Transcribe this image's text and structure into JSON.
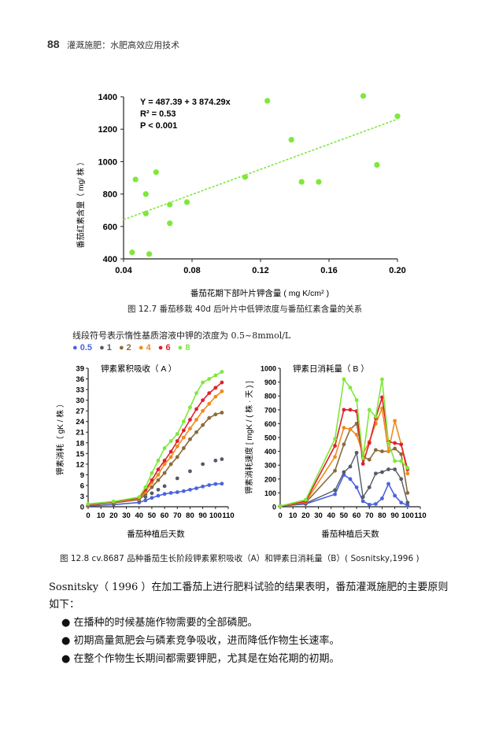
{
  "header": {
    "page_number": "88",
    "book_title": "灌溉施肥：水肥高效应用技术"
  },
  "fig127": {
    "caption": "图 12.7   番茄移栽 40d 后叶片中低钾浓度与番茄红素含量的关系",
    "equation": "Y = 487.39 + 3 874.29x",
    "r2": "R² = 0.53",
    "p": "P < 0.001",
    "xlabel": "番茄花期下部叶片钾含量 ( mg K/cm² )",
    "ylabel": "番茄红素含量（ mg/ 株 ）",
    "point_color": "#7ee83a"
  },
  "fig128_note": "线段符号表示惰性基质溶液中钾的浓度为 0.5~8mmol/L",
  "fig128_legend": [
    {
      "label": "0.5",
      "color": "#4a63e0"
    },
    {
      "label": "1",
      "color": "#555b66"
    },
    {
      "label": "2",
      "color": "#8a6a3c"
    },
    {
      "label": "4",
      "color": "#f08a1c"
    },
    {
      "label": "6",
      "color": "#e0202a"
    },
    {
      "label": "8",
      "color": "#7ee83a"
    }
  ],
  "fig128": {
    "caption": "图 12.8   cv.8687 品种番茄生长阶段钾素累积吸收（A）和钾素日消耗量（B）( Sosnitsky,1996 )",
    "A_title": "钾素累积吸收（ A ）",
    "A_ylabel": "钾素消耗（ gK / 株 ）",
    "A_xlabel": "番茄种植后天数",
    "B_title": "钾素日消耗量（ B ）",
    "B_ylabel": "钾素消耗速度 [ mgK / ( 株 · 天 ) ]",
    "B_xlabel": "番茄种植后天数"
  },
  "paragraph": "Sosnitsky（ 1996 ）在加工番茄上进行肥料试验的结果表明，番茄灌溉施肥的主要原则如下：",
  "bullets": [
    "在播种的时候基施作物需要的全部磷肥。",
    "初期高量氮肥会与磷素竞争吸收，进而降低作物生长速率。",
    "在整个作物生长期间都需要钾肥，尤其是在始花期的初期。"
  ],
  "chart_data": [
    {
      "type": "scatter",
      "title": "",
      "xlabel": "番茄花期下部叶片钾含量 ( mg K/cm² )",
      "ylabel": "番茄红素含量（ mg/ 株 ）",
      "xlim": [
        0.04,
        0.2
      ],
      "ylim": [
        400,
        1400
      ],
      "xticks": [
        "0.04",
        "0.08",
        "0.12",
        "0.16",
        "0.20"
      ],
      "yticks": [
        "400",
        "600",
        "800",
        "1000",
        "1200",
        "1400"
      ],
      "points": [
        {
          "x": 0.045,
          "y": 440
        },
        {
          "x": 0.047,
          "y": 890
        },
        {
          "x": 0.053,
          "y": 800
        },
        {
          "x": 0.053,
          "y": 680
        },
        {
          "x": 0.055,
          "y": 430
        },
        {
          "x": 0.059,
          "y": 935
        },
        {
          "x": 0.067,
          "y": 620
        },
        {
          "x": 0.067,
          "y": 735
        },
        {
          "x": 0.077,
          "y": 750
        },
        {
          "x": 0.111,
          "y": 905
        },
        {
          "x": 0.124,
          "y": 1375
        },
        {
          "x": 0.138,
          "y": 1135
        },
        {
          "x": 0.144,
          "y": 875
        },
        {
          "x": 0.154,
          "y": 875
        },
        {
          "x": 0.18,
          "y": 1405
        },
        {
          "x": 0.188,
          "y": 980
        },
        {
          "x": 0.2,
          "y": 1280
        }
      ],
      "fit": {
        "intercept": 487.39,
        "slope": 3874.29
      },
      "annotations": [
        "Y = 487.39 + 3 874.29x",
        "R² = 0.53",
        "P < 0.001"
      ]
    },
    {
      "type": "line",
      "title": "钾素累积吸收（ A ）",
      "xlabel": "番茄种植后天数",
      "ylabel": "钾素消耗（ gK / 株 ）",
      "xlim": [
        0,
        110
      ],
      "ylim": [
        0,
        39
      ],
      "xticks": [
        0,
        10,
        20,
        30,
        40,
        50,
        60,
        70,
        80,
        90,
        100,
        110
      ],
      "xtick_labels": [
        "0",
        "10",
        "20",
        "30",
        "40",
        "50",
        "60",
        "70",
        "80",
        "90",
        "100",
        "110"
      ],
      "yticks": [
        0,
        3,
        6,
        9,
        12,
        15,
        18,
        21,
        24,
        27,
        30,
        33,
        36,
        39
      ],
      "x_solid": [
        0,
        20,
        40,
        45,
        50,
        55,
        60,
        65,
        70,
        75,
        80,
        85,
        90,
        95,
        100,
        105
      ],
      "series": [
        {
          "name": "0.5",
          "values": [
            0.2,
            0.6,
            1.2,
            1.8,
            2.5,
            3.1,
            3.6,
            3.9,
            4.1,
            4.4,
            4.8,
            5.2,
            5.7,
            6.1,
            6.4,
            6.5
          ],
          "style": "solid"
        },
        {
          "name": "1",
          "x": [
            0,
            20,
            40,
            45,
            50,
            55,
            60,
            70,
            80,
            90,
            100,
            105
          ],
          "values": [
            0.4,
            0.9,
            1.8,
            2.8,
            3.8,
            4.8,
            5.8,
            8.0,
            10.0,
            12.0,
            13.0,
            13.4
          ],
          "style": "dots"
        },
        {
          "name": "2",
          "values": [
            0.5,
            1.1,
            2.0,
            3.5,
            5.5,
            7.5,
            9.5,
            12.0,
            14.0,
            16.5,
            19.0,
            21.0,
            23.0,
            25.0,
            26.0,
            26.5
          ],
          "style": "solid"
        },
        {
          "name": "4",
          "values": [
            0.6,
            1.3,
            2.3,
            4.2,
            6.8,
            9.0,
            12.0,
            14.0,
            17.0,
            19.5,
            22.0,
            24.5,
            27.0,
            29.0,
            31.0,
            32.5
          ],
          "style": "solid"
        },
        {
          "name": "6",
          "values": [
            0.7,
            1.4,
            2.5,
            4.8,
            7.5,
            10.5,
            13.0,
            15.5,
            18.5,
            21.5,
            24.5,
            27.5,
            30.0,
            32.0,
            33.5,
            35.0
          ],
          "style": "solid"
        },
        {
          "name": "8",
          "values": [
            0.8,
            1.5,
            2.7,
            5.5,
            9.5,
            13.0,
            16.5,
            18.5,
            20.5,
            24.0,
            28.0,
            32.0,
            35.0,
            36.0,
            37.0,
            38.0
          ],
          "style": "solid"
        }
      ]
    },
    {
      "type": "line",
      "title": "钾素日消耗量（ B ）",
      "xlabel": "番茄种植后天数",
      "ylabel": "钾素消耗速度 [ mgK / ( 株 · 天 ) ]",
      "xlim": [
        0,
        110
      ],
      "ylim": [
        0,
        1000
      ],
      "xticks": [
        0,
        10,
        20,
        30,
        40,
        50,
        60,
        70,
        80,
        90,
        100,
        110
      ],
      "xtick_labels": [
        "0",
        "10",
        "20",
        "30",
        "40",
        "50",
        "60",
        "70",
        "80",
        "90",
        "100",
        "110"
      ],
      "yticks": [
        0,
        100,
        200,
        300,
        400,
        500,
        600,
        700,
        800,
        900,
        1000
      ],
      "x": [
        0,
        20,
        43,
        50,
        55,
        60,
        65,
        70,
        75,
        80,
        85,
        90,
        95,
        100
      ],
      "series": [
        {
          "name": "0.5",
          "values": [
            5,
            20,
            90,
            230,
            200,
            140,
            40,
            15,
            20,
            60,
            165,
            80,
            30,
            10
          ],
          "style": "solid"
        },
        {
          "name": "1",
          "values": [
            5,
            25,
            120,
            250,
            290,
            390,
            70,
            140,
            240,
            250,
            270,
            270,
            200,
            30
          ],
          "style": "dots"
        },
        {
          "name": "2",
          "values": [
            5,
            30,
            260,
            450,
            560,
            600,
            360,
            340,
            410,
            400,
            400,
            420,
            380,
            100
          ],
          "style": "solid"
        },
        {
          "name": "4",
          "values": [
            5,
            35,
            360,
            570,
            560,
            520,
            380,
            470,
            600,
            710,
            400,
            620,
            450,
            240
          ],
          "style": "solid"
        },
        {
          "name": "6",
          "values": [
            5,
            40,
            440,
            700,
            700,
            690,
            310,
            460,
            640,
            790,
            470,
            460,
            450,
            270
          ],
          "style": "solid"
        },
        {
          "name": "8",
          "values": [
            5,
            50,
            490,
            920,
            860,
            770,
            350,
            700,
            650,
            920,
            460,
            330,
            330,
            280
          ],
          "style": "solid"
        }
      ]
    }
  ]
}
